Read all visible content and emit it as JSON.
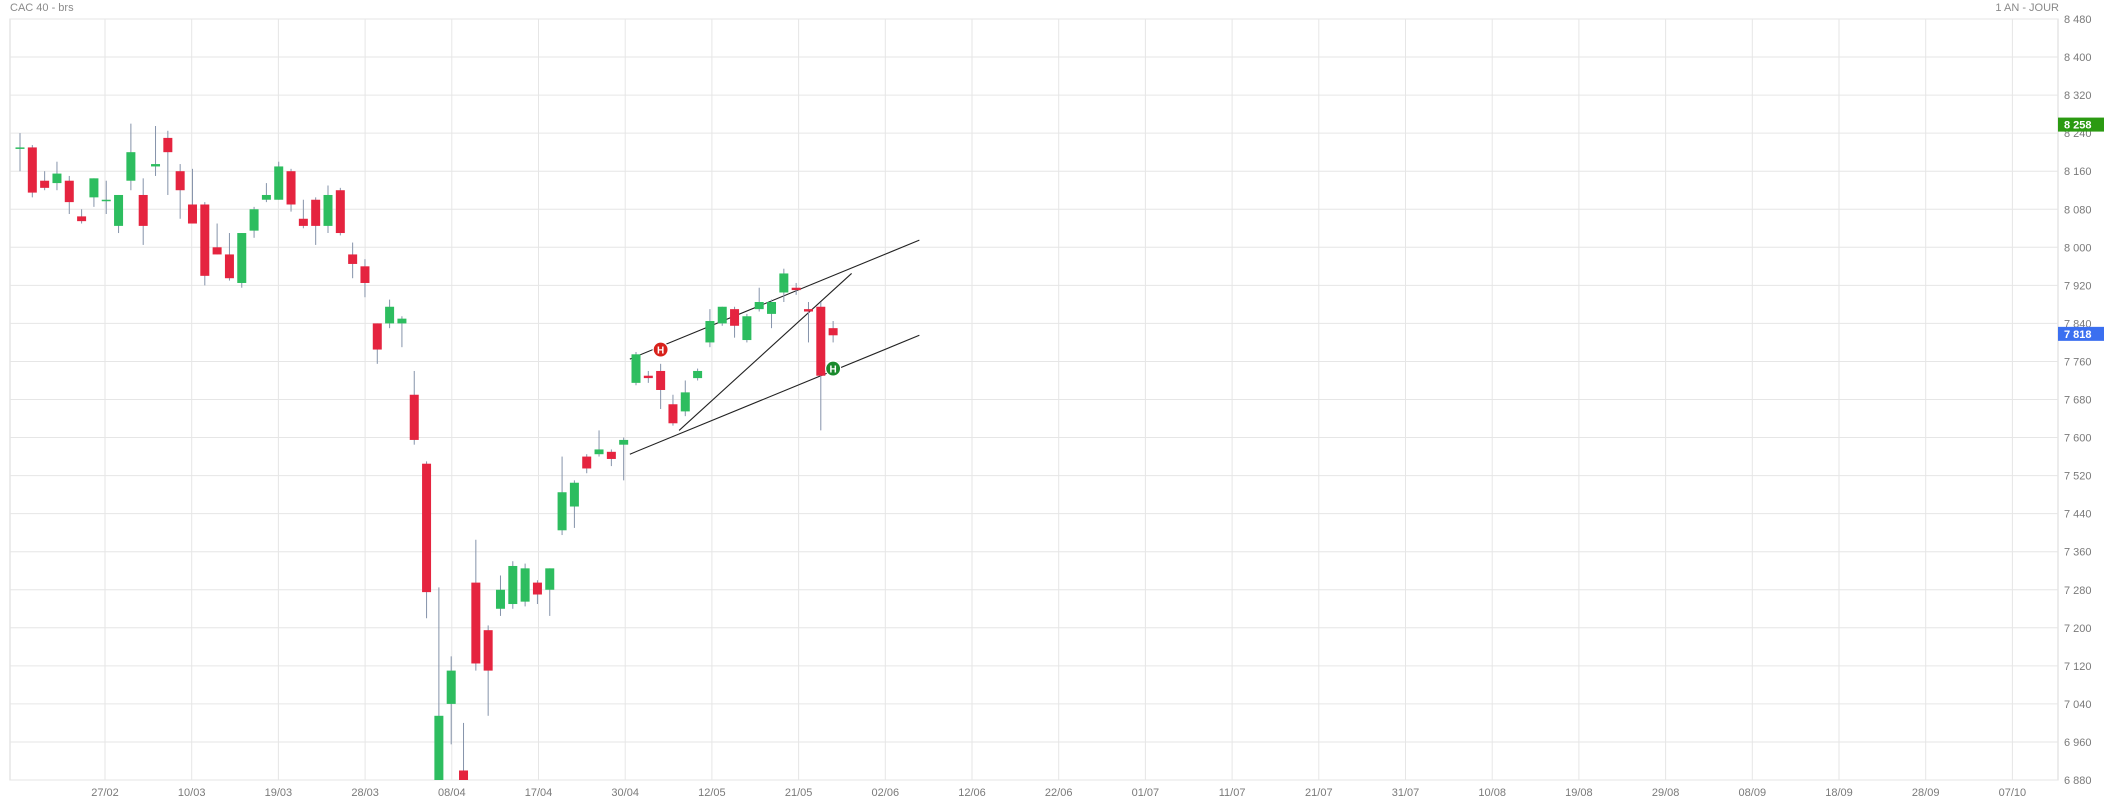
{
  "header": {
    "title": "CAC 40 - brs",
    "period": "1 AN - JOUR"
  },
  "colors": {
    "up": "#2dbd5f",
    "down": "#e5243f",
    "wick": "#8593aa",
    "grid": "#e6e6e6",
    "last_price_bg": "#2b9a12",
    "current_price_bg": "#3b6ff0",
    "signal_sell": "#d8211b",
    "signal_buy": "#1a8a2d",
    "trendline": "#222222"
  },
  "chart_data": {
    "type": "candlestick",
    "title": "CAC 40 - brs",
    "ylim": [
      6880,
      8480
    ],
    "y_ticks": [
      "8 480",
      "8 400",
      "8 320",
      "8 240",
      "8 160",
      "8 080",
      "8 000",
      "7 920",
      "7 840",
      "7 760",
      "7 680",
      "7 600",
      "7 520",
      "7 440",
      "7 360",
      "7 280",
      "7 200",
      "7 120",
      "7 040",
      "6 960",
      "6 880"
    ],
    "x_ticks": [
      "27/02",
      "10/03",
      "19/03",
      "28/03",
      "08/04",
      "17/04",
      "30/04",
      "12/05",
      "21/05",
      "02/06",
      "12/06",
      "22/06",
      "01/07",
      "11/07",
      "21/07",
      "31/07",
      "10/08",
      "19/08",
      "29/08",
      "08/09",
      "18/09",
      "28/09",
      "07/10"
    ],
    "price_labels": [
      {
        "text": "8 258",
        "value": 8258,
        "color": "last_price_bg"
      },
      {
        "text": "7 818",
        "value": 7818,
        "color": "current_price_bg"
      }
    ],
    "candles": [
      {
        "o": 8210,
        "h": 8240,
        "l": 8160,
        "c": 8210
      },
      {
        "o": 8210,
        "h": 8215,
        "l": 8105,
        "c": 8115
      },
      {
        "o": 8140,
        "h": 8160,
        "l": 8120,
        "c": 8125
      },
      {
        "o": 8135,
        "h": 8180,
        "l": 8120,
        "c": 8155
      },
      {
        "o": 8140,
        "h": 8150,
        "l": 8070,
        "c": 8095
      },
      {
        "o": 8065,
        "h": 8080,
        "l": 8050,
        "c": 8055
      },
      {
        "o": 8105,
        "h": 8145,
        "l": 8085,
        "c": 8145
      },
      {
        "o": 8100,
        "h": 8140,
        "l": 8070,
        "c": 8100
      },
      {
        "o": 8045,
        "h": 8110,
        "l": 8030,
        "c": 8110
      },
      {
        "o": 8140,
        "h": 8260,
        "l": 8120,
        "c": 8200
      },
      {
        "o": 8110,
        "h": 8145,
        "l": 8005,
        "c": 8045
      },
      {
        "o": 8170,
        "h": 8255,
        "l": 8150,
        "c": 8175
      },
      {
        "o": 8230,
        "h": 8245,
        "l": 8110,
        "c": 8200
      },
      {
        "o": 8160,
        "h": 8175,
        "l": 8060,
        "c": 8120
      },
      {
        "o": 8090,
        "h": 8165,
        "l": 8050,
        "c": 8050
      },
      {
        "o": 8090,
        "h": 8095,
        "l": 7920,
        "c": 7940
      },
      {
        "o": 8000,
        "h": 8050,
        "l": 7985,
        "c": 7985
      },
      {
        "o": 7985,
        "h": 8030,
        "l": 7930,
        "c": 7935
      },
      {
        "o": 7925,
        "h": 8030,
        "l": 7915,
        "c": 8030
      },
      {
        "o": 8035,
        "h": 8085,
        "l": 8020,
        "c": 8080
      },
      {
        "o": 8100,
        "h": 8135,
        "l": 8095,
        "c": 8110
      },
      {
        "o": 8100,
        "h": 8180,
        "l": 8100,
        "c": 8170
      },
      {
        "o": 8160,
        "h": 8165,
        "l": 8075,
        "c": 8090
      },
      {
        "o": 8060,
        "h": 8100,
        "l": 8040,
        "c": 8045
      },
      {
        "o": 8100,
        "h": 8105,
        "l": 8005,
        "c": 8045
      },
      {
        "o": 8045,
        "h": 8130,
        "l": 8030,
        "c": 8110
      },
      {
        "o": 8120,
        "h": 8125,
        "l": 8025,
        "c": 8030
      },
      {
        "o": 7985,
        "h": 8010,
        "l": 7935,
        "c": 7965
      },
      {
        "o": 7960,
        "h": 7975,
        "l": 7895,
        "c": 7925
      },
      {
        "o": 7840,
        "h": 7840,
        "l": 7755,
        "c": 7785
      },
      {
        "o": 7840,
        "h": 7890,
        "l": 7830,
        "c": 7875
      },
      {
        "o": 7840,
        "h": 7855,
        "l": 7790,
        "c": 7850
      },
      {
        "o": 7690,
        "h": 7740,
        "l": 7585,
        "c": 7595
      },
      {
        "o": 7545,
        "h": 7550,
        "l": 7220,
        "c": 7275
      },
      {
        "o": 6880,
        "h": 7285,
        "l": 6850,
        "c": 7015
      },
      {
        "o": 7040,
        "h": 7140,
        "l": 6955,
        "c": 7110
      },
      {
        "o": 6900,
        "h": 7000,
        "l": 6860,
        "c": 6870
      },
      {
        "o": 7295,
        "h": 7385,
        "l": 7110,
        "c": 7125
      },
      {
        "o": 7195,
        "h": 7205,
        "l": 7015,
        "c": 7110
      },
      {
        "o": 7240,
        "h": 7310,
        "l": 7225,
        "c": 7280
      },
      {
        "o": 7250,
        "h": 7340,
        "l": 7240,
        "c": 7330
      },
      {
        "o": 7255,
        "h": 7335,
        "l": 7245,
        "c": 7325
      },
      {
        "o": 7295,
        "h": 7300,
        "l": 7250,
        "c": 7270
      },
      {
        "o": 7280,
        "h": 7325,
        "l": 7225,
        "c": 7325
      },
      {
        "o": 7405,
        "h": 7560,
        "l": 7395,
        "c": 7485
      },
      {
        "o": 7455,
        "h": 7510,
        "l": 7410,
        "c": 7505
      },
      {
        "o": 7560,
        "h": 7565,
        "l": 7525,
        "c": 7535
      },
      {
        "o": 7565,
        "h": 7615,
        "l": 7560,
        "c": 7575
      },
      {
        "o": 7570,
        "h": 7575,
        "l": 7540,
        "c": 7555
      },
      {
        "o": 7585,
        "h": 7600,
        "l": 7510,
        "c": 7595
      },
      {
        "o": 7715,
        "h": 7780,
        "l": 7710,
        "c": 7775
      },
      {
        "o": 7730,
        "h": 7740,
        "l": 7715,
        "c": 7725
      },
      {
        "o": 7740,
        "h": 7755,
        "l": 7660,
        "c": 7700
      },
      {
        "o": 7670,
        "h": 7690,
        "l": 7625,
        "c": 7630
      },
      {
        "o": 7655,
        "h": 7720,
        "l": 7645,
        "c": 7695
      },
      {
        "o": 7725,
        "h": 7745,
        "l": 7720,
        "c": 7740
      },
      {
        "o": 7800,
        "h": 7870,
        "l": 7790,
        "c": 7845
      },
      {
        "o": 7840,
        "h": 7875,
        "l": 7835,
        "c": 7875
      },
      {
        "o": 7870,
        "h": 7875,
        "l": 7810,
        "c": 7835
      },
      {
        "o": 7805,
        "h": 7860,
        "l": 7800,
        "c": 7855
      },
      {
        "o": 7870,
        "h": 7915,
        "l": 7865,
        "c": 7885
      },
      {
        "o": 7860,
        "h": 7890,
        "l": 7830,
        "c": 7885
      },
      {
        "o": 7905,
        "h": 7955,
        "l": 7885,
        "c": 7945
      },
      {
        "o": 7915,
        "h": 7925,
        "l": 7900,
        "c": 7910
      },
      {
        "o": 7870,
        "h": 7885,
        "l": 7800,
        "c": 7865
      },
      {
        "o": 7875,
        "h": 7885,
        "l": 7615,
        "c": 7730
      },
      {
        "o": 7830,
        "h": 7845,
        "l": 7800,
        "c": 7815
      }
    ],
    "trendlines": [
      {
        "i1": 49.5,
        "v1": 7765,
        "i2": 73.0,
        "v2": 8015
      },
      {
        "i1": 49.5,
        "v1": 7565,
        "i2": 73.0,
        "v2": 7815
      },
      {
        "i1": 53.5,
        "v1": 7615,
        "i2": 67.5,
        "v2": 7945
      }
    ],
    "signals": [
      {
        "i": 52,
        "v": 7785,
        "label": "H",
        "color": "signal_sell"
      },
      {
        "i": 66,
        "v": 7745,
        "label": "H",
        "color": "signal_buy"
      }
    ]
  }
}
